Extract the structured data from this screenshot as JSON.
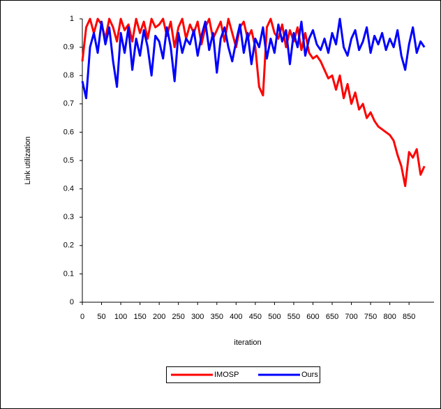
{
  "chart_data": {
    "type": "line",
    "ylabel": "Link utilization",
    "xlabel": "iteration",
    "x": [
      0,
      10,
      20,
      30,
      40,
      50,
      60,
      70,
      80,
      90,
      100,
      110,
      120,
      130,
      140,
      150,
      160,
      170,
      180,
      190,
      200,
      210,
      220,
      230,
      240,
      250,
      260,
      270,
      280,
      290,
      300,
      310,
      320,
      330,
      340,
      350,
      360,
      370,
      380,
      390,
      400,
      410,
      420,
      430,
      440,
      450,
      460,
      470,
      480,
      490,
      500,
      510,
      520,
      530,
      540,
      550,
      560,
      570,
      580,
      590,
      600,
      610,
      620,
      630,
      640,
      650,
      660,
      670,
      680,
      690,
      700,
      710,
      720,
      730,
      740,
      750,
      760,
      770,
      780,
      790,
      800,
      810,
      820,
      830,
      840,
      850,
      860,
      870,
      880,
      890
    ],
    "series": [
      {
        "name": "IMOSP",
        "color": "#ff0000",
        "values": [
          0.85,
          0.97,
          1,
          0.95,
          1,
          0.98,
          0.93,
          1,
          0.97,
          0.92,
          1,
          0.96,
          0.98,
          0.92,
          1,
          0.95,
          0.99,
          0.93,
          1,
          0.97,
          0.98,
          1,
          0.94,
          0.99,
          0.9,
          0.97,
          1,
          0.93,
          0.98,
          0.95,
          0.99,
          0.91,
          0.97,
          1,
          0.93,
          0.96,
          0.99,
          0.92,
          1,
          0.95,
          0.9,
          0.97,
          0.99,
          0.93,
          0.96,
          0.9,
          0.76,
          0.73,
          0.97,
          1,
          0.95,
          0.93,
          0.98,
          0.9,
          0.96,
          0.92,
          0.97,
          0.89,
          0.95,
          0.88,
          0.86,
          0.87,
          0.85,
          0.82,
          0.79,
          0.8,
          0.75,
          0.8,
          0.72,
          0.77,
          0.7,
          0.74,
          0.68,
          0.7,
          0.65,
          0.67,
          0.64,
          0.62,
          0.61,
          0.6,
          0.59,
          0.57,
          0.52,
          0.48,
          0.41,
          0.53,
          0.51,
          0.54,
          0.45,
          0.48
        ]
      },
      {
        "name": "Ours",
        "color": "#0000ff",
        "values": [
          0.78,
          0.72,
          0.9,
          0.95,
          0.88,
          0.99,
          0.91,
          0.97,
          0.85,
          0.76,
          0.95,
          0.88,
          0.97,
          0.82,
          0.93,
          0.87,
          0.96,
          0.9,
          0.8,
          0.94,
          0.92,
          0.86,
          0.97,
          0.9,
          0.78,
          0.95,
          0.88,
          0.93,
          0.91,
          0.96,
          0.87,
          0.94,
          0.99,
          0.89,
          0.95,
          0.81,
          0.93,
          0.97,
          0.9,
          0.85,
          0.92,
          0.98,
          0.88,
          0.95,
          0.84,
          0.93,
          0.9,
          0.97,
          0.86,
          0.93,
          0.88,
          0.98,
          0.92,
          0.96,
          0.84,
          0.95,
          0.9,
          0.99,
          0.87,
          0.93,
          0.96,
          0.91,
          0.89,
          0.93,
          0.88,
          0.95,
          0.91,
          1,
          0.9,
          0.87,
          0.93,
          0.96,
          0.89,
          0.92,
          0.97,
          0.88,
          0.94,
          0.91,
          0.95,
          0.89,
          0.93,
          0.9,
          0.96,
          0.87,
          0.82,
          0.91,
          0.97,
          0.88,
          0.92,
          0.9
        ]
      }
    ],
    "xlim": [
      0,
      915
    ],
    "xticks": [
      0,
      50,
      100,
      150,
      200,
      250,
      300,
      350,
      400,
      450,
      500,
      550,
      600,
      650,
      700,
      750,
      800,
      850
    ],
    "ylim": [
      0,
      1
    ],
    "yticks": [
      0,
      0.1,
      0.2,
      0.3,
      0.4,
      0.5,
      0.6,
      0.7,
      0.8,
      0.9,
      1
    ],
    "legend": "bottom"
  }
}
